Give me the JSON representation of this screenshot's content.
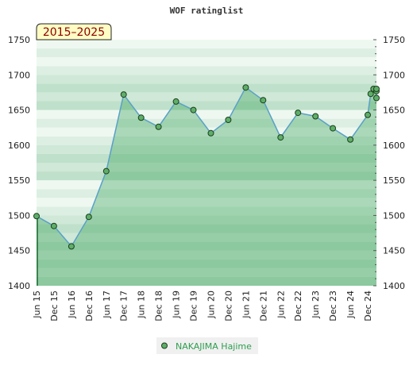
{
  "chart_data": {
    "type": "area",
    "title": "WOF ratinglist",
    "range_label": "2015–2025",
    "ylim": [
      1400,
      1750
    ],
    "yticks": [
      1400,
      1450,
      1500,
      1550,
      1600,
      1650,
      1700,
      1750
    ],
    "xlim": [
      "2015-06",
      "2025-03"
    ],
    "xticks": [
      {
        "label": "Jun 15",
        "date": "2015-06"
      },
      {
        "label": "Dec 15",
        "date": "2015-12"
      },
      {
        "label": "Jun 16",
        "date": "2016-06"
      },
      {
        "label": "Dec 16",
        "date": "2016-12"
      },
      {
        "label": "Jun 17",
        "date": "2017-06"
      },
      {
        "label": "Dec 17",
        "date": "2017-12"
      },
      {
        "label": "Jun 18",
        "date": "2018-06"
      },
      {
        "label": "Dec 18",
        "date": "2018-12"
      },
      {
        "label": "Jun 19",
        "date": "2019-06"
      },
      {
        "label": "Dec 19",
        "date": "2019-12"
      },
      {
        "label": "Jun 20",
        "date": "2020-06"
      },
      {
        "label": "Dec 20",
        "date": "2020-12"
      },
      {
        "label": "Jun 21",
        "date": "2021-06"
      },
      {
        "label": "Dec 21",
        "date": "2021-12"
      },
      {
        "label": "Jun 22",
        "date": "2022-06"
      },
      {
        "label": "Dec 22",
        "date": "2022-12"
      },
      {
        "label": "Jun 23",
        "date": "2023-06"
      },
      {
        "label": "Dec 23",
        "date": "2023-12"
      },
      {
        "label": "Jun 24",
        "date": "2024-06"
      },
      {
        "label": "Dec 24",
        "date": "2024-12"
      }
    ],
    "series": [
      {
        "name": "NAKAJIMA Hajime",
        "points": [
          {
            "date": "2015-06",
            "value": 1499
          },
          {
            "date": "2015-12",
            "value": 1485
          },
          {
            "date": "2016-06",
            "value": 1456
          },
          {
            "date": "2016-12",
            "value": 1498
          },
          {
            "date": "2017-06",
            "value": 1563
          },
          {
            "date": "2017-12",
            "value": 1672
          },
          {
            "date": "2018-06",
            "value": 1639
          },
          {
            "date": "2018-12",
            "value": 1626
          },
          {
            "date": "2019-06",
            "value": 1662
          },
          {
            "date": "2019-12",
            "value": 1650
          },
          {
            "date": "2020-06",
            "value": 1617
          },
          {
            "date": "2020-12",
            "value": 1636
          },
          {
            "date": "2021-06",
            "value": 1682
          },
          {
            "date": "2021-12",
            "value": 1664
          },
          {
            "date": "2022-06",
            "value": 1611
          },
          {
            "date": "2022-12",
            "value": 1646
          },
          {
            "date": "2023-06",
            "value": 1641
          },
          {
            "date": "2023-12",
            "value": 1624
          },
          {
            "date": "2024-06",
            "value": 1608
          },
          {
            "date": "2024-12",
            "value": 1643
          },
          {
            "date": "2025-01",
            "value": 1673
          },
          {
            "date": "2025-02",
            "value": 1680
          },
          {
            "date": "2025-03",
            "value": 1677
          },
          {
            "date": "2025-03",
            "value": 1667
          },
          {
            "date": "2025-03",
            "value": 1680
          }
        ]
      }
    ],
    "grid": true,
    "legend_position": "bottom-center",
    "colors": {
      "line": "#5aa0c8",
      "fill": "#2e9e4f",
      "marker": "#5fae6a",
      "band_dark": "#7fc497",
      "band_light": "#eef8f1",
      "range_box": "#fffcc4"
    }
  },
  "legend": {
    "items": [
      {
        "label": "NAKAJIMA Hajime"
      }
    ]
  }
}
